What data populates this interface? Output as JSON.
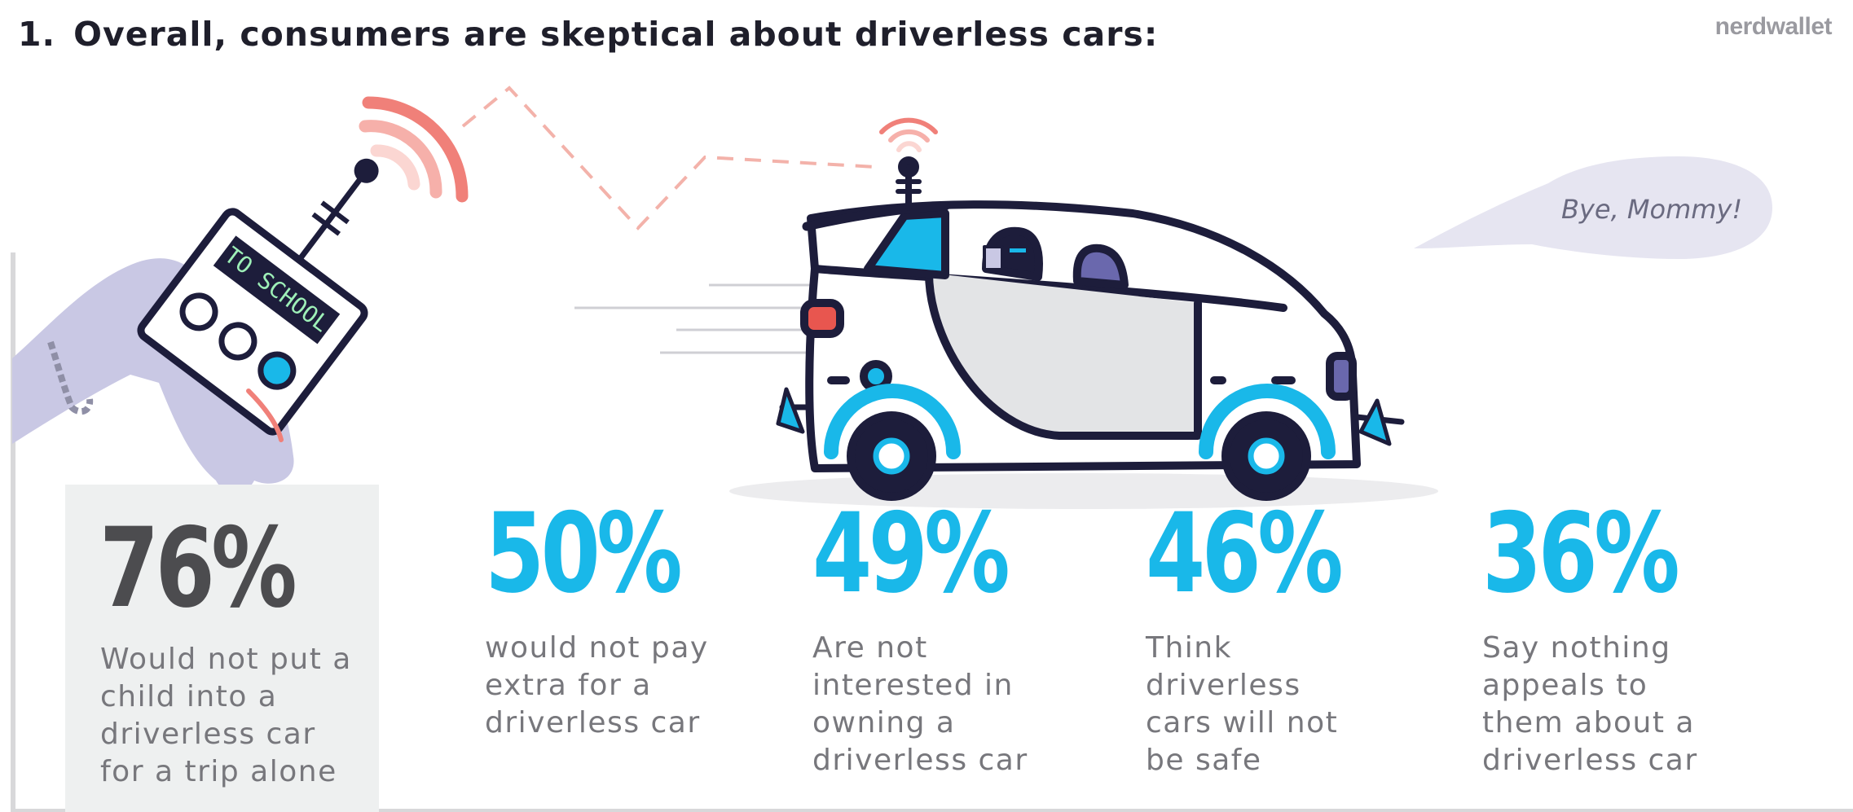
{
  "header": {
    "number": "1.",
    "title": "Overall, consumers are skeptical about driverless cars:",
    "brand": "nerdwallet"
  },
  "illustration": {
    "remote_label": "TO SCHOOL",
    "speech": "Bye, Mommy!",
    "colors": {
      "signal": "#f07f78",
      "accent": "#19b8e9",
      "outline": "#1d1d3b",
      "hand": "#c9c8e4"
    }
  },
  "stats": [
    {
      "percent": "76%",
      "text": "Would not put a child into a driverless car for a trip alone",
      "highlight": true
    },
    {
      "percent": "50%",
      "text": "would not pay extra for a driverless car",
      "highlight": false
    },
    {
      "percent": "49%",
      "text": "Are not interested in owning a driverless car",
      "highlight": false
    },
    {
      "percent": "46%",
      "text": "Think driverless cars will not be safe",
      "highlight": false
    },
    {
      "percent": "36%",
      "text": "Say nothing appeals to them about a driverless car",
      "highlight": false
    }
  ],
  "colors": {
    "highlight_percent": "#4c4c4f",
    "percent": "#19b8e9",
    "description": "#77777c"
  }
}
